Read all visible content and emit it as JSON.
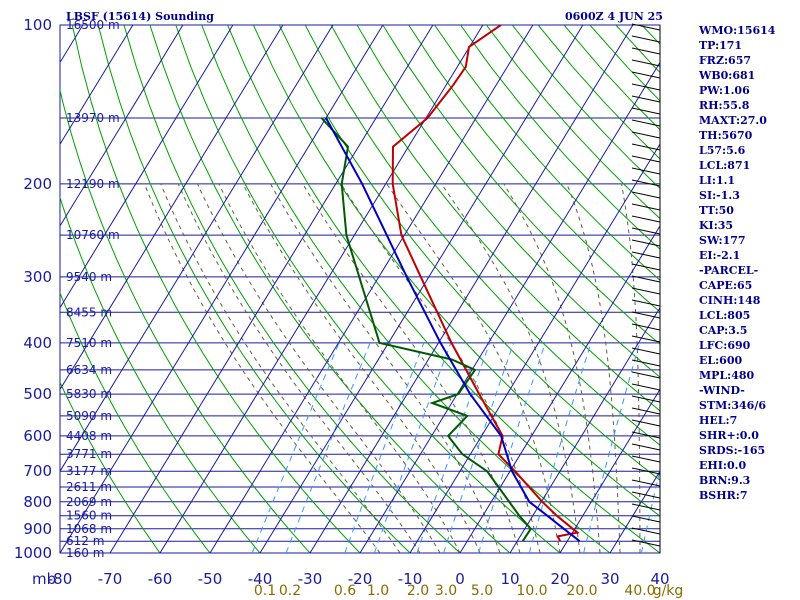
{
  "header": {
    "station": "LBSF (15614) Sounding",
    "valid": "0600Z  4 JUN 25"
  },
  "axes": {
    "pressure_unit": "mb"
  },
  "colors": {
    "grid": "#1a1aa0",
    "temperature": "#c00000",
    "dewpoint": "#005a00",
    "parcel": "#0000c0",
    "dry_adiabat": "#00a000",
    "moist_adiabat": "#606040",
    "mixing_ratio": "#3399ff",
    "wind": "#000000"
  },
  "indices": [
    "WMO:15614",
    "TP:171",
    "FRZ:657",
    "WB0:681",
    "PW:1.06",
    "RH:55.8",
    "MAXT:27.0",
    "TH:5670",
    "L57:5.6",
    "LCL:871",
    "LI:1.1",
    "SI:-1.3",
    "TT:50",
    "KI:35",
    "SW:177",
    "EI:-2.1",
    "-PARCEL-",
    "CAPE:65",
    "CINH:148",
    "LCL:805",
    "CAP:3.5",
    "LFC:690",
    "EL:600",
    "MPL:480",
    "-WIND-",
    "STM:346/6",
    "HEL:7",
    "SHR+:0.0",
    "SRDS:-165",
    "EHI:0.0",
    "BRN:9.3",
    "BSHR:7"
  ],
  "chart_data": {
    "type": "line",
    "title": "LBSF (15614) Sounding",
    "diagram": "skew-T log-P",
    "xlabel": "",
    "ylabel": "mb",
    "x_ticks": [
      -80,
      -70,
      -60,
      -50,
      -40,
      -30,
      -20,
      -10,
      0,
      10,
      20,
      30,
      40
    ],
    "pressure_ticks": [
      100,
      200,
      300,
      400,
      500,
      600,
      700,
      800,
      900,
      1000
    ],
    "ylim": [
      1000,
      100
    ],
    "height_labels": [
      {
        "p": 100,
        "label": "16500 m"
      },
      {
        "p": 150,
        "label": "13970 m"
      },
      {
        "p": 200,
        "label": "12190 m"
      },
      {
        "p": 250,
        "label": "10760 m"
      },
      {
        "p": 300,
        "label": "9540 m"
      },
      {
        "p": 350,
        "label": "8455 m"
      },
      {
        "p": 400,
        "label": "7510 m"
      },
      {
        "p": 450,
        "label": "6634 m"
      },
      {
        "p": 500,
        "label": "5830 m"
      },
      {
        "p": 550,
        "label": "5090 m"
      },
      {
        "p": 600,
        "label": "4408 m"
      },
      {
        "p": 650,
        "label": "3771 m"
      },
      {
        "p": 700,
        "label": "3177 m"
      },
      {
        "p": 750,
        "label": "2611 m"
      },
      {
        "p": 800,
        "label": "2069 m"
      },
      {
        "p": 850,
        "label": "1560 m"
      },
      {
        "p": 900,
        "label": "1068 m"
      },
      {
        "p": 950,
        "label": "612 m"
      },
      {
        "p": 1000,
        "label": "160 m"
      }
    ],
    "mixing_ratio_labels": [
      "0.1",
      "0.2",
      "0.6",
      "1.0",
      "2.0",
      "3.0",
      "5.0",
      "10.0",
      "20.0",
      "40.0",
      "g/kg"
    ],
    "series": [
      {
        "key": "temperature",
        "points": [
          {
            "p": 950,
            "t": 18.6
          },
          {
            "p": 930,
            "t": 17.5
          },
          {
            "p": 915,
            "t": 21.0
          },
          {
            "p": 900,
            "t": 19.6
          },
          {
            "p": 850,
            "t": 14.8
          },
          {
            "p": 800,
            "t": 10.2
          },
          {
            "p": 700,
            "t": 1.0
          },
          {
            "p": 650,
            "t": -4.4
          },
          {
            "p": 600,
            "t": -5.8
          },
          {
            "p": 500,
            "t": -15.6
          },
          {
            "p": 400,
            "t": -27.4
          },
          {
            "p": 300,
            "t": -41.6
          },
          {
            "p": 250,
            "t": -50.6
          },
          {
            "p": 200,
            "t": -58.6
          },
          {
            "p": 170,
            "t": -63.1
          },
          {
            "p": 150,
            "t": -59.7
          },
          {
            "p": 130,
            "t": -58.6
          },
          {
            "p": 120,
            "t": -58.3
          },
          {
            "p": 110,
            "t": -60.1
          },
          {
            "p": 100,
            "t": -56.4
          }
        ]
      },
      {
        "key": "dewpoint",
        "points": [
          {
            "p": 950,
            "t": 11.1
          },
          {
            "p": 900,
            "t": 11.2
          },
          {
            "p": 850,
            "t": 7.3
          },
          {
            "p": 700,
            "t": -4.6
          },
          {
            "p": 650,
            "t": -11.6
          },
          {
            "p": 600,
            "t": -16.7
          },
          {
            "p": 550,
            "t": -15.3
          },
          {
            "p": 520,
            "t": -23.9
          },
          {
            "p": 500,
            "t": -19.8
          },
          {
            "p": 450,
            "t": -19.4
          },
          {
            "p": 430,
            "t": -25.3
          },
          {
            "p": 400,
            "t": -41.8
          },
          {
            "p": 250,
            "t": -61.6
          },
          {
            "p": 200,
            "t": -68.8
          },
          {
            "p": 170,
            "t": -72.1
          },
          {
            "p": 150,
            "t": -80.9
          }
        ]
      },
      {
        "key": "parcel",
        "points": [
          {
            "p": 950,
            "t": 22.5
          },
          {
            "p": 900,
            "t": 17.8
          },
          {
            "p": 850,
            "t": 12.9
          },
          {
            "p": 800,
            "t": 7.6
          },
          {
            "p": 700,
            "t": 0.4
          },
          {
            "p": 600,
            "t": -6.1
          },
          {
            "p": 500,
            "t": -17.4
          },
          {
            "p": 400,
            "t": -29.6
          },
          {
            "p": 300,
            "t": -44.4
          },
          {
            "p": 200,
            "t": -64.7
          },
          {
            "p": 150,
            "t": -80.0
          }
        ]
      }
    ]
  }
}
